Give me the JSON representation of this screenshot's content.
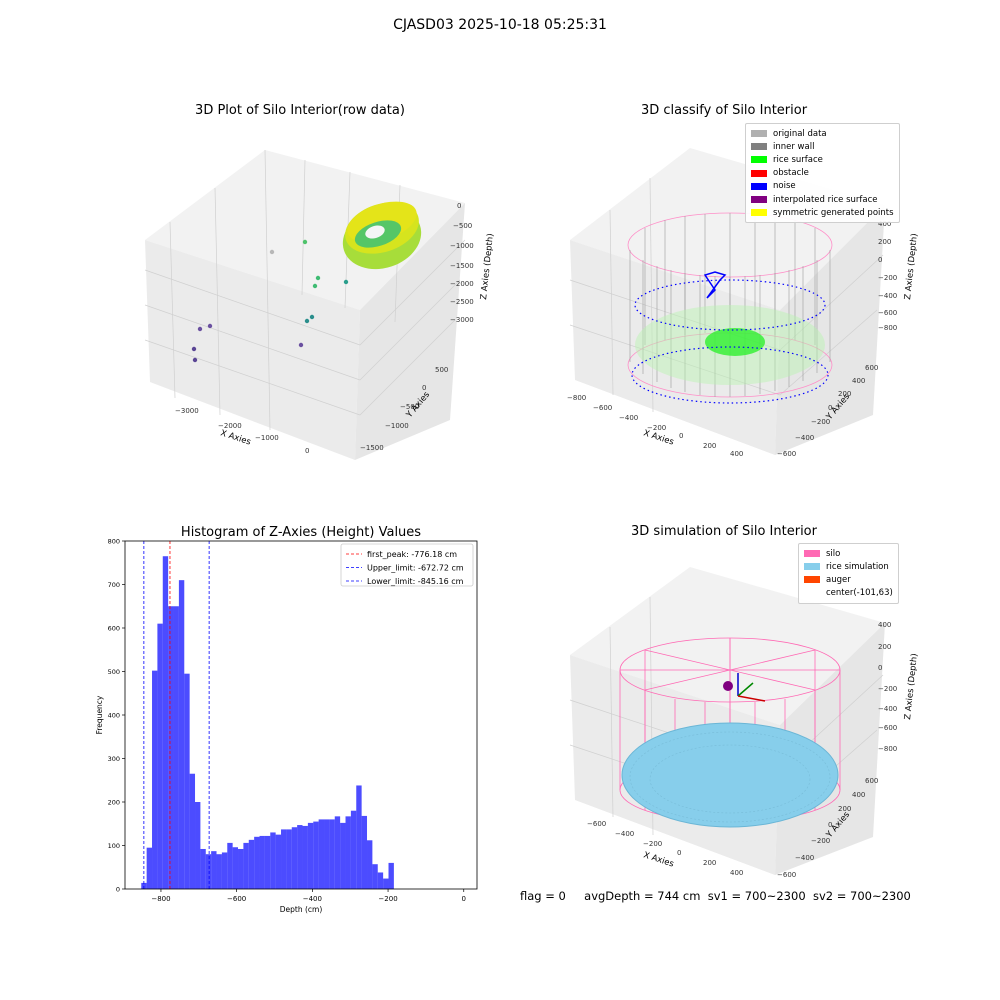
{
  "suptitle": "CJASD03 2025-10-18 05:25:31",
  "panel_tl": {
    "title": "3D Plot of Silo Interior(row data)",
    "xlabel": "X Axies",
    "ylabel": "Y Axies",
    "zlabel": "Z Axies (Depth)",
    "x_ticks": [
      "−3000",
      "−2000",
      "−1000",
      "0"
    ],
    "y_ticks": [
      "500",
      "0",
      "−500",
      "−1000",
      "−1500"
    ],
    "z_ticks": [
      "0",
      "−500",
      "−1000",
      "−1500",
      "−2000",
      "−2500",
      "−3000"
    ]
  },
  "panel_tr": {
    "title": "3D classify of Silo Interior",
    "xlabel": "X Axies",
    "ylabel": "Y Axies",
    "zlabel": "Z Axies (Depth)",
    "x_ticks": [
      "−800",
      "−600",
      "−400",
      "−200",
      "0",
      "200",
      "400"
    ],
    "y_ticks": [
      "600",
      "400",
      "200",
      "0",
      "−200",
      "−400",
      "−600"
    ],
    "z_ticks": [
      "400",
      "200",
      "0",
      "−200",
      "−400",
      "−600",
      "−800"
    ],
    "legend": [
      {
        "label": "original data",
        "color": "#b0b0b0"
      },
      {
        "label": "inner wall",
        "color": "#808080"
      },
      {
        "label": "rice surface",
        "color": "#00ff00"
      },
      {
        "label": "obstacle",
        "color": "#ff0000"
      },
      {
        "label": "noise",
        "color": "#0000ff"
      },
      {
        "label": "interpolated rice surface",
        "color": "#800080"
      },
      {
        "label": "symmetric generated points",
        "color": "#ffff00"
      }
    ]
  },
  "panel_bl": {
    "title": "Histogram of Z-Axies (Height) Values"
  },
  "panel_br": {
    "title": "3D simulation of Silo Interior",
    "xlabel": "X Axies",
    "ylabel": "Y Axies",
    "zlabel": "Z Axies (Depth)",
    "x_ticks": [
      "−600",
      "−400",
      "−200",
      "0",
      "200",
      "400"
    ],
    "y_ticks": [
      "600",
      "400",
      "200",
      "0",
      "−200",
      "−400",
      "−600"
    ],
    "z_ticks": [
      "400",
      "200",
      "0",
      "−200",
      "−400",
      "−600",
      "−800"
    ],
    "legend": [
      {
        "label": "silo",
        "color": "#ff69b4"
      },
      {
        "label": "rice simulation",
        "color": "#87ceeb"
      },
      {
        "label": "auger",
        "color": "#ff4500"
      },
      {
        "label": "center(-101,63)",
        "color": ""
      }
    ]
  },
  "footer": {
    "flag": "flag = 0",
    "avg": "avgDepth = 744 cm",
    "sv1": "sv1 = 700~2300",
    "sv2": "sv2 = 700~2300"
  },
  "chart_data": {
    "type": "bar",
    "title": "Histogram of Z-Axies (Height) Values",
    "xlabel": "Depth (cm)",
    "ylabel": "Frequency",
    "xlim": [
      -895,
      35
    ],
    "ylim": [
      0,
      800
    ],
    "x_ticks": [
      -800,
      -600,
      -400,
      -200,
      0
    ],
    "x_tick_labels": [
      "−800",
      "−600",
      "−400",
      "−200",
      "0"
    ],
    "y_ticks": [
      0,
      100,
      200,
      300,
      400,
      500,
      600,
      700,
      800
    ],
    "bar_color": "#0000ff",
    "bin_start": -852,
    "bin_width": 14.2,
    "values": [
      14,
      95,
      502,
      610,
      765,
      650,
      650,
      710,
      495,
      265,
      200,
      92,
      80,
      87,
      80,
      84,
      106,
      96,
      92,
      106,
      113,
      120,
      122,
      122,
      130,
      125,
      137,
      137,
      142,
      147,
      145,
      152,
      155,
      160,
      160,
      160,
      167,
      152,
      167,
      180,
      238,
      168,
      112,
      57,
      38,
      24,
      60
    ],
    "series": [
      {
        "name": "first_peak: -776.18 cm",
        "value": -776.18,
        "color": "#ff0000",
        "style": "dashed"
      },
      {
        "name": "Upper_limit: -672.72 cm",
        "value": -672.72,
        "color": "#0000ff",
        "style": "dashed"
      },
      {
        "name": "Lower_limit: -845.16 cm",
        "value": -845.16,
        "color": "#0000ff",
        "style": "dashed"
      }
    ],
    "legend_position": "upper right"
  }
}
